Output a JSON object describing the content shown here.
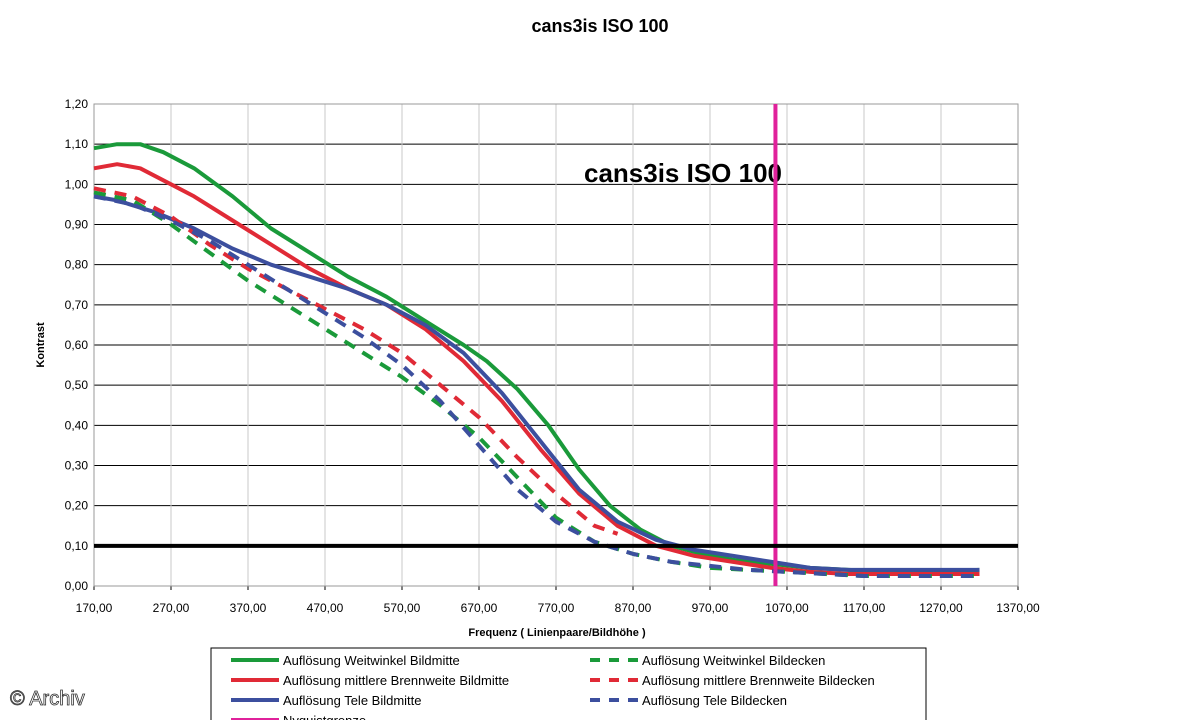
{
  "chart_data": {
    "type": "line",
    "title": "cans3is   ISO 100",
    "inner_title": "cans3is   ISO 100",
    "xlabel": "Frequenz ( Linienpaare/Bildhöhe )",
    "ylabel": "Kontrast",
    "xlim": [
      170,
      1370
    ],
    "ylim": [
      0,
      1.2
    ],
    "x_ticks": [
      "170,00",
      "270,00",
      "370,00",
      "470,00",
      "570,00",
      "670,00",
      "770,00",
      "870,00",
      "970,00",
      "1070,00",
      "1170,00",
      "1270,00",
      "1370,00"
    ],
    "y_ticks": [
      "0,00",
      "0,10",
      "0,20",
      "0,30",
      "0,40",
      "0,50",
      "0,60",
      "0,70",
      "0,80",
      "0,90",
      "1,00",
      "1,10",
      "1,20"
    ],
    "grid": "horizontal",
    "legend_position": "bottom",
    "reference_lines": [
      {
        "name": "Nyquistgrenze",
        "orientation": "vertical",
        "x": 1055,
        "color": "#e0219b"
      },
      {
        "name": "",
        "orientation": "horizontal",
        "y": 0.1,
        "color": "#000000"
      }
    ],
    "series": [
      {
        "name": "Auflösung Weitwinkel Bildmitte",
        "color": "#1a9a3a",
        "dash": "solid",
        "x": [
          170,
          200,
          230,
          260,
          300,
          350,
          400,
          450,
          500,
          550,
          600,
          650,
          680,
          720,
          760,
          800,
          840,
          880,
          920,
          960,
          1000,
          1050,
          1100,
          1150,
          1200,
          1250,
          1320
        ],
        "y": [
          1.09,
          1.1,
          1.1,
          1.08,
          1.04,
          0.97,
          0.89,
          0.83,
          0.77,
          0.72,
          0.66,
          0.6,
          0.56,
          0.49,
          0.4,
          0.29,
          0.2,
          0.14,
          0.1,
          0.08,
          0.065,
          0.055,
          0.045,
          0.04,
          0.035,
          0.035,
          0.04
        ]
      },
      {
        "name": "Auflösung mittlere Brennweite Bildmitte",
        "color": "#e02a36",
        "dash": "solid",
        "x": [
          170,
          200,
          230,
          270,
          300,
          350,
          400,
          450,
          500,
          550,
          600,
          650,
          700,
          750,
          800,
          850,
          900,
          950,
          1000,
          1050,
          1100,
          1150,
          1200,
          1250,
          1320
        ],
        "y": [
          1.04,
          1.05,
          1.04,
          1.0,
          0.97,
          0.91,
          0.85,
          0.79,
          0.74,
          0.7,
          0.64,
          0.56,
          0.46,
          0.34,
          0.23,
          0.15,
          0.1,
          0.075,
          0.06,
          0.045,
          0.035,
          0.03,
          0.03,
          0.03,
          0.03
        ]
      },
      {
        "name": "Auflösung Tele Bildmitte",
        "color": "#3c4f9e",
        "dash": "solid",
        "x": [
          170,
          200,
          250,
          300,
          350,
          400,
          450,
          500,
          550,
          600,
          650,
          700,
          750,
          800,
          850,
          900,
          950,
          1000,
          1050,
          1100,
          1150,
          1200,
          1250,
          1320
        ],
        "y": [
          0.97,
          0.96,
          0.93,
          0.89,
          0.84,
          0.8,
          0.77,
          0.74,
          0.7,
          0.65,
          0.58,
          0.48,
          0.36,
          0.24,
          0.16,
          0.115,
          0.09,
          0.075,
          0.06,
          0.045,
          0.04,
          0.04,
          0.04,
          0.04
        ]
      },
      {
        "name": "Auflösung Weitwinkel Bildecken",
        "color": "#1a9a3a",
        "dash": "dashed",
        "x": [
          170,
          220,
          270,
          320,
          370,
          420,
          470,
          520,
          570,
          620,
          670,
          720,
          770,
          820,
          870,
          920,
          970,
          1020,
          1070,
          1120,
          1170,
          1220,
          1270,
          1320
        ],
        "y": [
          0.98,
          0.96,
          0.9,
          0.83,
          0.76,
          0.7,
          0.64,
          0.58,
          0.52,
          0.45,
          0.37,
          0.27,
          0.17,
          0.11,
          0.08,
          0.06,
          0.045,
          0.04,
          0.035,
          0.03,
          0.025,
          0.025,
          0.025,
          0.025
        ]
      },
      {
        "name": "Auflösung mittlere Brennweite Bildecken",
        "color": "#e02a36",
        "dash": "dashed",
        "x": [
          170,
          220,
          270,
          320,
          370,
          420,
          470,
          520,
          570,
          620,
          670,
          720,
          770,
          820,
          850
        ],
        "y": [
          0.99,
          0.97,
          0.92,
          0.85,
          0.79,
          0.74,
          0.69,
          0.64,
          0.58,
          0.5,
          0.42,
          0.32,
          0.23,
          0.15,
          0.13
        ]
      },
      {
        "name": "Auflösung Tele Bildecken",
        "color": "#3c4f9e",
        "dash": "dashed",
        "x": [
          170,
          220,
          270,
          320,
          370,
          420,
          470,
          520,
          570,
          620,
          670,
          720,
          770,
          820,
          870,
          920,
          970,
          1020,
          1070,
          1120,
          1170,
          1220,
          1270,
          1320
        ],
        "y": [
          0.97,
          0.95,
          0.91,
          0.86,
          0.8,
          0.74,
          0.68,
          0.62,
          0.55,
          0.46,
          0.35,
          0.24,
          0.16,
          0.11,
          0.08,
          0.06,
          0.05,
          0.04,
          0.035,
          0.03,
          0.025,
          0.025,
          0.025,
          0.025
        ]
      }
    ],
    "legend": {
      "left": [
        "Auflösung Weitwinkel Bildmitte",
        "Auflösung mittlere Brennweite Bildmitte",
        "Auflösung Tele Bildmitte",
        "Nyquistgrenze"
      ],
      "right": [
        "Auflösung Weitwinkel Bildecken",
        "Auflösung mittlere Brennweite Bildecken",
        "Auflösung Tele Bildecken"
      ]
    }
  },
  "watermark": "© Archiv"
}
